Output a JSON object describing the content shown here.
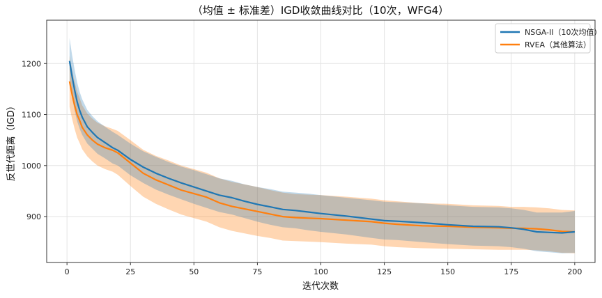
{
  "chart_data": {
    "type": "line",
    "title": "（均值 ± 标准差）IGD收敛曲线对比（10次，WFG4）",
    "xlabel": "迭代次数",
    "ylabel": "反世代距离（IGD）",
    "xlim": [
      -8,
      208
    ],
    "ylim": [
      810,
      1285
    ],
    "xticks": [
      0,
      25,
      50,
      75,
      100,
      125,
      150,
      175,
      200
    ],
    "yticks": [
      900,
      1000,
      1100,
      1200
    ],
    "grid": true,
    "legend_position": "top-right",
    "series": [
      {
        "name": "NSGA-II（10次均值）",
        "color": "#1f77b4",
        "x": [
          1,
          2,
          3,
          4,
          5,
          6,
          8,
          10,
          12,
          15,
          18,
          20,
          25,
          30,
          35,
          40,
          45,
          50,
          55,
          60,
          65,
          70,
          75,
          80,
          85,
          90,
          95,
          100,
          110,
          120,
          125,
          130,
          140,
          150,
          160,
          170,
          175,
          180,
          185,
          190,
          195,
          200
        ],
        "mean": [
          1205,
          1175,
          1148,
          1125,
          1108,
          1095,
          1076,
          1065,
          1055,
          1045,
          1035,
          1030,
          1012,
          997,
          985,
          975,
          966,
          958,
          950,
          942,
          937,
          930,
          924,
          919,
          914,
          912,
          909,
          906,
          901,
          895,
          892,
          891,
          888,
          884,
          881,
          880,
          878,
          875,
          870,
          869,
          868,
          870
        ],
        "std": [
          45,
          42,
          40,
          38,
          36,
          35,
          33,
          32,
          32,
          31,
          31,
          30,
          31,
          31,
          32,
          32,
          32,
          33,
          33,
          33,
          33,
          33,
          34,
          35,
          35,
          35,
          36,
          36,
          36,
          37,
          37,
          37,
          38,
          38,
          38,
          38,
          38,
          38,
          38,
          39,
          40,
          41
        ]
      },
      {
        "name": "RVEA（其他算法）",
        "color": "#ff7f0e",
        "x": [
          1,
          2,
          3,
          4,
          5,
          6,
          8,
          10,
          12,
          15,
          18,
          20,
          25,
          30,
          35,
          40,
          45,
          50,
          55,
          60,
          65,
          70,
          75,
          80,
          85,
          90,
          95,
          100,
          110,
          120,
          125,
          130,
          140,
          150,
          160,
          170,
          175,
          180,
          185,
          190,
          195,
          200
        ],
        "mean": [
          1165,
          1140,
          1118,
          1100,
          1088,
          1075,
          1060,
          1050,
          1042,
          1035,
          1030,
          1025,
          1005,
          985,
          972,
          962,
          952,
          945,
          938,
          927,
          920,
          915,
          910,
          905,
          900,
          898,
          897,
          896,
          893,
          890,
          887,
          885,
          882,
          881,
          879,
          878,
          877,
          877,
          876,
          874,
          871,
          870
        ],
        "std": [
          50,
          48,
          46,
          45,
          44,
          43,
          42,
          42,
          42,
          42,
          42,
          43,
          45,
          46,
          47,
          48,
          48,
          48,
          48,
          48,
          48,
          48,
          48,
          47,
          47,
          46,
          46,
          46,
          46,
          45,
          45,
          45,
          44,
          44,
          43,
          43,
          42,
          42,
          42,
          42,
          42,
          42
        ]
      }
    ]
  }
}
